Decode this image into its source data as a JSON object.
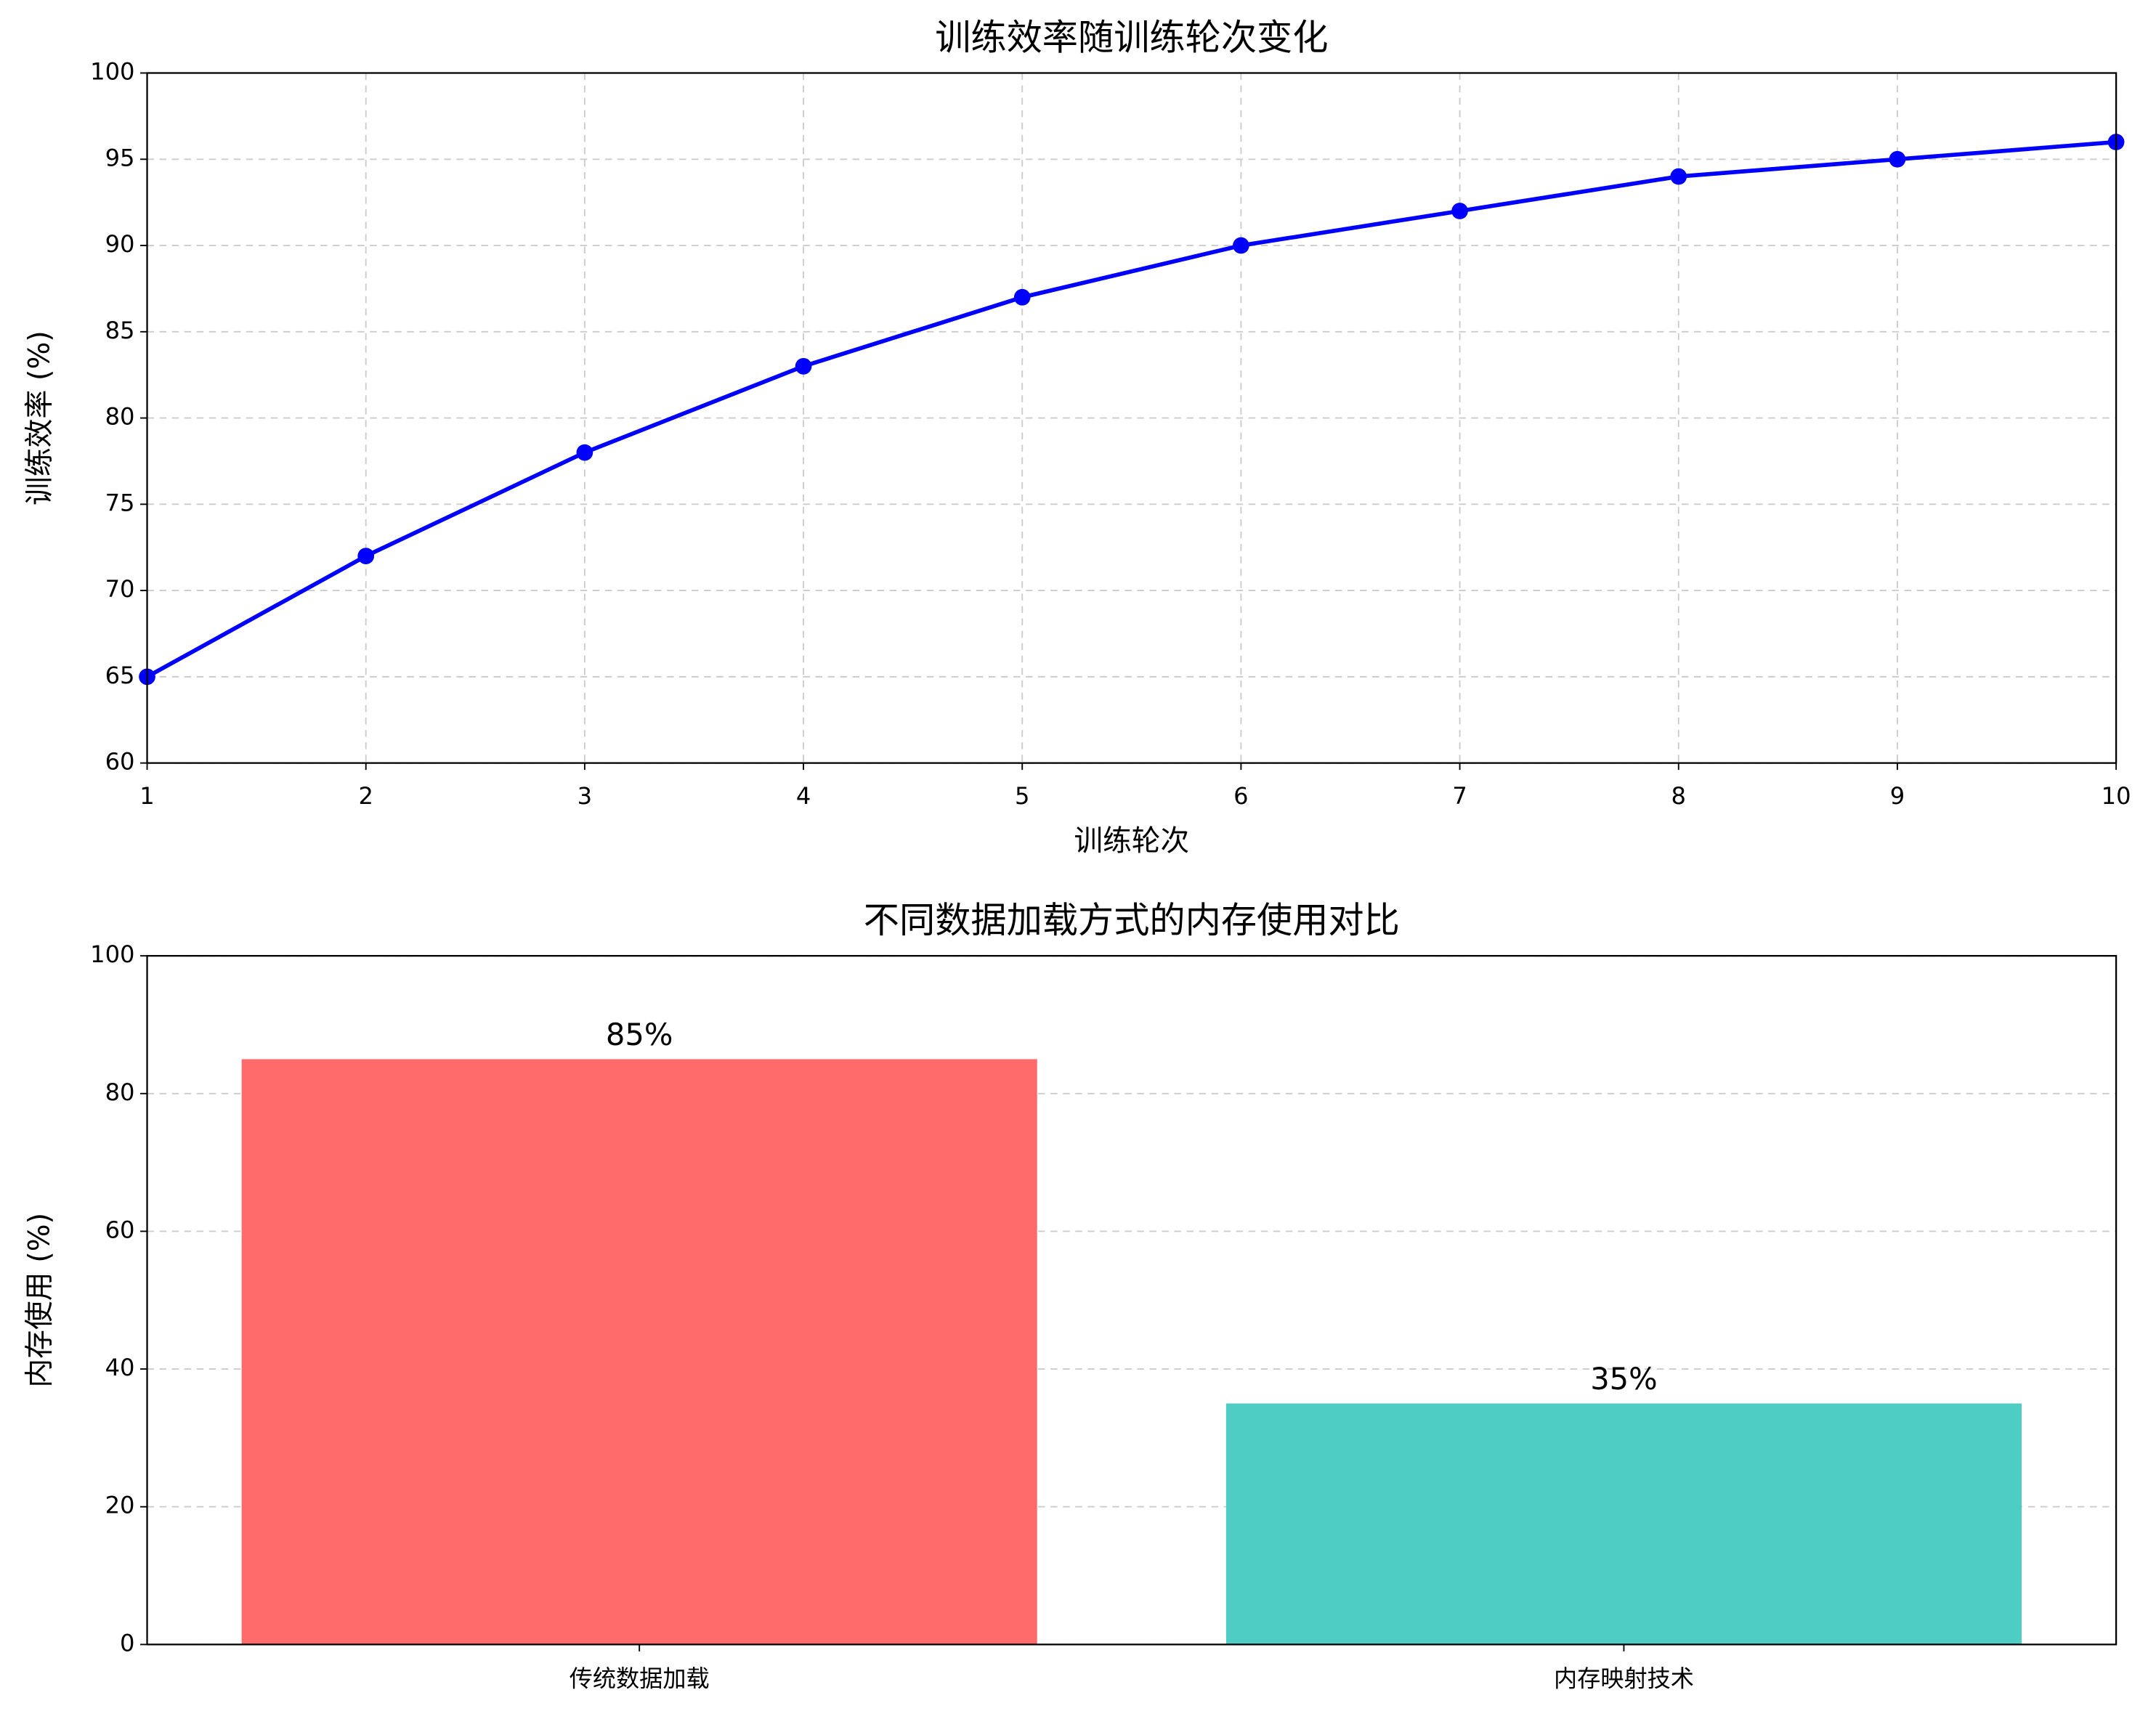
{
  "chart_data": [
    {
      "type": "line",
      "title": "训练效率随训练轮次变化",
      "xlabel": "训练轮次",
      "ylabel": "训练效率 (%)",
      "x": [
        1,
        2,
        3,
        4,
        5,
        6,
        7,
        8,
        9,
        10
      ],
      "series": [
        {
          "name": "训练效率",
          "color": "#0000ff",
          "values": [
            65,
            72,
            78,
            83,
            87,
            90,
            92,
            94,
            95,
            96
          ]
        }
      ],
      "xlim": [
        1,
        10
      ],
      "xticks": [
        1,
        2,
        3,
        4,
        5,
        6,
        7,
        8,
        9,
        10
      ],
      "ylim": [
        60,
        100
      ],
      "yticks": [
        60,
        65,
        70,
        75,
        80,
        85,
        90,
        95,
        100
      ],
      "grid": true
    },
    {
      "type": "bar",
      "title": "不同数据加载方式的内存使用对比",
      "ylabel": "内存使用 (%)",
      "categories": [
        "传统数据加载",
        "内存映射技术"
      ],
      "values": [
        85,
        35
      ],
      "value_labels": [
        "85%",
        "35%"
      ],
      "colors": [
        "#ff6b6b",
        "#4ecdc4"
      ],
      "ylim": [
        0,
        100
      ],
      "yticks": [
        0,
        20,
        40,
        60,
        80,
        100
      ],
      "grid": true
    }
  ]
}
